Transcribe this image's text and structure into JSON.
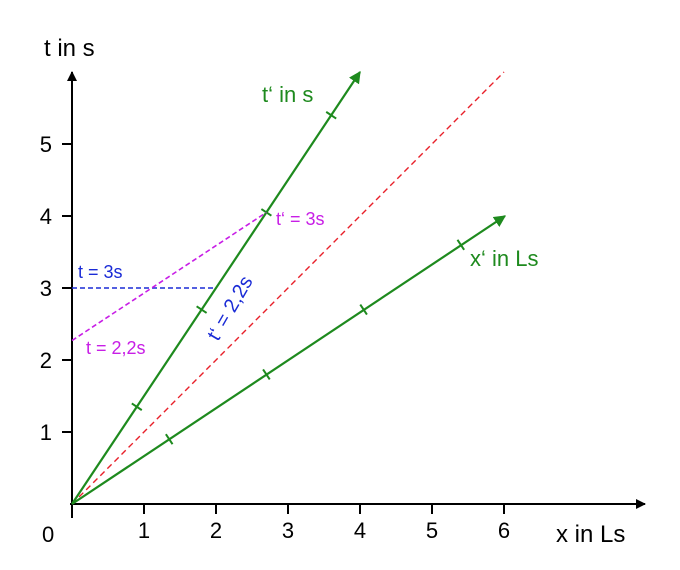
{
  "axes": {
    "x_label": "x in Ls",
    "t_label": "t in s",
    "origin_label": "0",
    "x_ticks": [
      "1",
      "2",
      "3",
      "4",
      "5",
      "6"
    ],
    "t_ticks": [
      "1",
      "2",
      "3",
      "4",
      "5"
    ],
    "x_range": [
      0,
      6.5
    ],
    "t_range": [
      0,
      6
    ]
  },
  "moving_frame": {
    "t_prime_axis_label": "t‘ in s",
    "x_prime_axis_label": "x‘ in Ls",
    "t_prime_tick_positions": [
      [
        0.9,
        1.35
      ],
      [
        1.8,
        2.7
      ],
      [
        2.7,
        4.05
      ],
      [
        3.6,
        5.4
      ]
    ],
    "x_prime_tick_positions": [
      [
        1.35,
        0.9
      ],
      [
        2.7,
        1.8
      ],
      [
        4.05,
        2.7
      ],
      [
        5.4,
        3.6
      ]
    ]
  },
  "light_line": {
    "from": [
      0,
      0
    ],
    "to": [
      6,
      6
    ]
  },
  "annotations": {
    "t_equals_3": "t = 3s",
    "t_prime_equals_2_2": "t‘ = 2,2s",
    "t_prime_equals_3": "t‘ = 3s",
    "t_equals_2_2": "t = 2,2s"
  },
  "colors": {
    "axis": "#000000",
    "moving_frame": "#1e8a1e",
    "light_line": "#e8202a",
    "blue": "#1a2bd6",
    "magenta": "#c81ee6"
  }
}
